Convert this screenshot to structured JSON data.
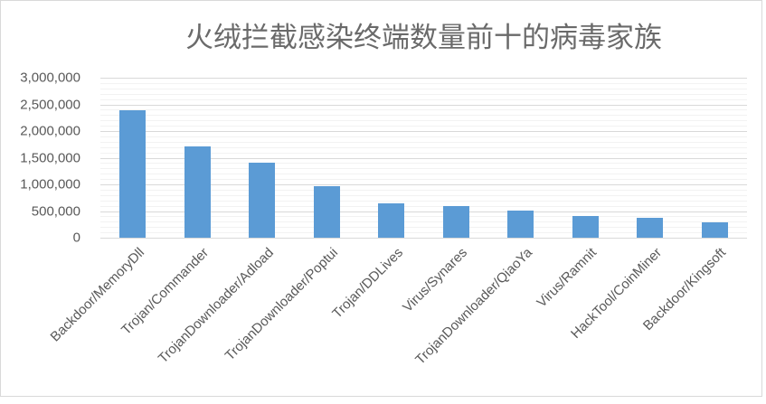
{
  "window": {
    "background_color": "#ffffff",
    "border_color": "#d9d9d9"
  },
  "chart_data": {
    "type": "bar",
    "title": "火绒拦截感染终端数量前十的病毒家族",
    "categories": [
      "Backdoor/MemoryDll",
      "Trojan/Commander",
      "TrojanDownloader/Adload",
      "TrojanDownloader/Poptui",
      "Trojan/DDLives",
      "Virus/Synares",
      "TrojanDownloader/QiaoYa",
      "Virus/Ramnit",
      "HackTool/CoinMiner",
      "Backdoor/Kingsoft"
    ],
    "values": [
      2390000,
      1710000,
      1415000,
      965000,
      645000,
      585000,
      510000,
      405000,
      365000,
      290000
    ],
    "xlabel": "",
    "ylabel": "",
    "ylim": [
      0,
      3000000
    ],
    "y_major_tick": 500000,
    "y_minor_tick": 100000,
    "y_tick_labels": [
      "0",
      "500,000",
      "1,000,000",
      "1,500,000",
      "2,000,000",
      "2,500,000",
      "3,000,000"
    ],
    "grid": "major and minor horizontal gridlines",
    "legend_position": "none",
    "bar_color": "#5b9bd5",
    "major_grid_color": "#d9d9d9",
    "minor_grid_color": "#f2f2f2",
    "axis_line_color": "#d9d9d9",
    "text_color": "#595959",
    "title_color": "#6a6a6a",
    "x_label_rotation_deg": 45
  }
}
